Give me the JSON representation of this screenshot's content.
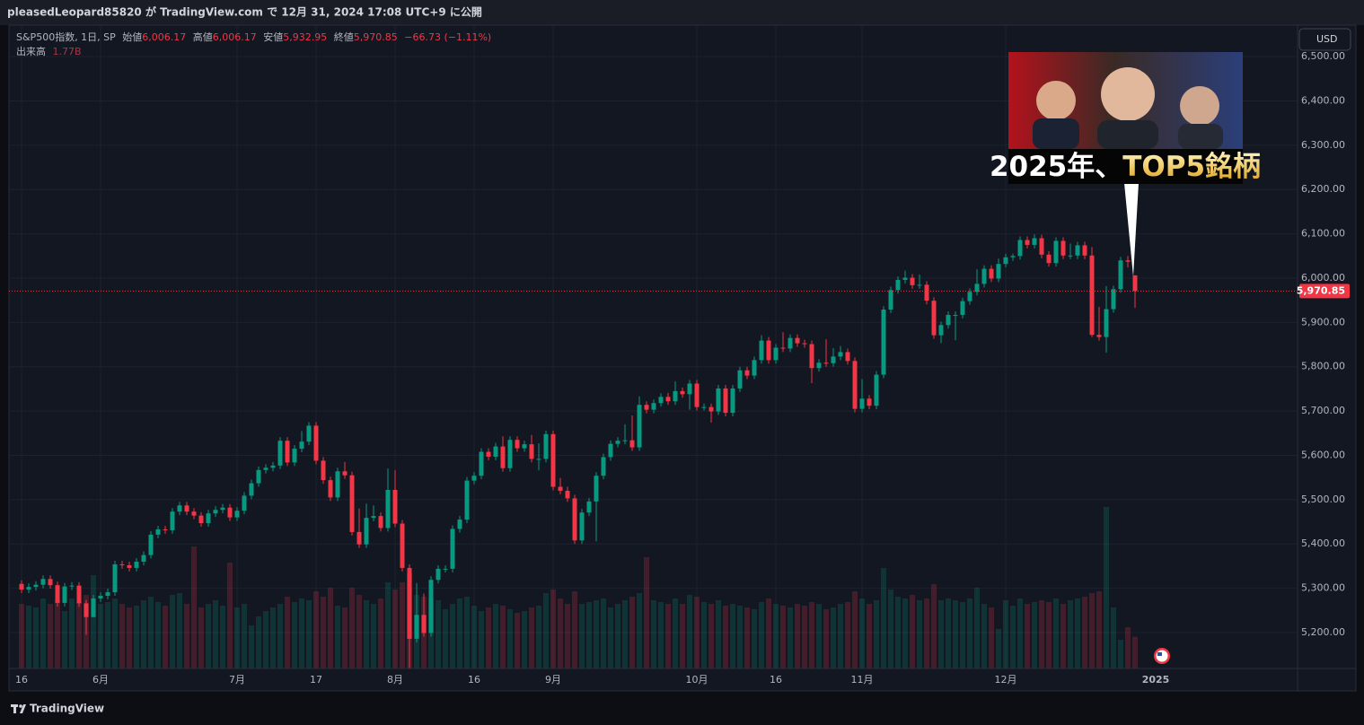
{
  "header": {
    "publisher": "pleasedLeopard85820 が TradingView.com で 12月 31, 2024 17:08 UTC+9 に公開"
  },
  "legend": {
    "symbol": "S&P500指数, 1日, SP",
    "open_label": "始値",
    "open": "6,006.17",
    "high_label": "高値",
    "high": "6,006.17",
    "low_label": "安値",
    "low": "5,932.95",
    "close_label": "終値",
    "close": "5,970.85",
    "change": "−66.73 (−1.11%)",
    "volume_label": "出来高",
    "volume": "1.77B"
  },
  "currency_button": "USD",
  "thumbnail": {
    "text": [
      "2025年、",
      "TOP5銘柄"
    ]
  },
  "footer": {
    "brand": "TradingView"
  },
  "chart_data": {
    "type": "candlestick",
    "up_color": "#089981",
    "down_color": "#f23645",
    "ylim": [
      5119,
      6571
    ],
    "yticks": [
      {
        "value": 5200,
        "label": "5,200.00"
      },
      {
        "value": 5300,
        "label": "5,300.00"
      },
      {
        "value": 5400,
        "label": "5,400.00"
      },
      {
        "value": 5500,
        "label": "5,500.00"
      },
      {
        "value": 5600,
        "label": "5,600.00"
      },
      {
        "value": 5700,
        "label": "5,700.00"
      },
      {
        "value": 5800,
        "label": "5,800.00"
      },
      {
        "value": 5900,
        "label": "5,900.00"
      },
      {
        "value": 6000,
        "label": "6,000.00"
      },
      {
        "value": 6100,
        "label": "6,100.00"
      },
      {
        "value": 6200,
        "label": "6,200.00"
      },
      {
        "value": 6300,
        "label": "6,300.00"
      },
      {
        "value": 6400,
        "label": "6,400.00"
      },
      {
        "value": 6500,
        "label": "6,500.00"
      }
    ],
    "last_price": {
      "value": 5970.85,
      "label": "5,970.85"
    },
    "next_label": "2025",
    "categories": [
      "16",
      null,
      null,
      null,
      null,
      null,
      null,
      null,
      null,
      null,
      null,
      "6月",
      null,
      null,
      null,
      null,
      null,
      null,
      null,
      null,
      null,
      null,
      null,
      null,
      null,
      null,
      null,
      null,
      null,
      null,
      "7月",
      null,
      null,
      null,
      null,
      null,
      null,
      null,
      null,
      null,
      null,
      "17",
      null,
      null,
      null,
      null,
      null,
      null,
      null,
      null,
      null,
      null,
      "8月",
      null,
      null,
      null,
      null,
      null,
      null,
      null,
      null,
      null,
      null,
      "16",
      null,
      null,
      null,
      null,
      null,
      null,
      null,
      null,
      null,
      null,
      "9月",
      null,
      null,
      null,
      null,
      null,
      null,
      null,
      null,
      null,
      null,
      null,
      null,
      null,
      null,
      null,
      null,
      null,
      null,
      null,
      "10月",
      null,
      null,
      null,
      null,
      null,
      null,
      null,
      null,
      null,
      null,
      "16",
      null,
      null,
      null,
      null,
      null,
      null,
      null,
      null,
      null,
      null,
      null,
      "11月",
      null,
      null,
      null,
      null,
      null,
      null,
      null,
      null,
      null,
      null,
      null,
      null,
      null,
      null,
      null,
      null,
      null,
      null,
      null,
      "12月",
      null,
      null,
      null,
      null,
      null,
      null,
      null,
      null,
      null,
      null,
      null,
      null,
      null,
      null,
      null,
      null,
      null,
      null
    ],
    "open": [
      5310,
      5297,
      5303,
      5308,
      5321,
      5307,
      5267,
      5304,
      5306,
      5266,
      5235,
      5277,
      5283,
      5291,
      5354,
      5352,
      5346,
      5360,
      5375,
      5421,
      5433,
      5431,
      5473,
      5487,
      5473,
      5464,
      5447,
      5469,
      5477,
      5482,
      5460,
      5475,
      5509,
      5537,
      5567,
      5572,
      5577,
      5633,
      5584,
      5615,
      5631,
      5667,
      5588,
      5544,
      5505,
      5564,
      5555,
      5427,
      5399,
      5459,
      5463,
      5436,
      5522,
      5446,
      5346,
      5186,
      5240,
      5199,
      5319,
      5344,
      5344,
      5434,
      5455,
      5543,
      5554,
      5608,
      5597,
      5620,
      5571,
      5635,
      5616,
      5625,
      5592,
      5592,
      5648,
      5529,
      5520,
      5503,
      5408,
      5471,
      5496,
      5554,
      5596,
      5626,
      5633,
      5634,
      5618,
      5714,
      5703,
      5718,
      5732,
      5722,
      5745,
      5738,
      5762,
      5709,
      5709,
      5699,
      5751,
      5696,
      5751,
      5792,
      5780,
      5815,
      5859,
      5815,
      5843,
      5841,
      5865,
      5853,
      5851,
      5797,
      5809,
      5808,
      5823,
      5833,
      5813,
      5705,
      5728,
      5712,
      5782,
      5929,
      5973,
      5996,
      6001,
      5984,
      5985,
      5949,
      5871,
      5894,
      5917,
      5917,
      5948,
      5969,
      5987,
      6021,
      5999,
      6032,
      6047,
      6050,
      6086,
      6075,
      6090,
      6053,
      6034,
      6084,
      6051,
      6051,
      6074,
      6051,
      5872,
      5867,
      5930,
      5975,
      6040,
      6006.17
    ],
    "high": [
      5318,
      5311,
      5316,
      5329,
      5329,
      5315,
      5312,
      5314,
      5314,
      5274,
      5285,
      5291,
      5299,
      5362,
      5362,
      5360,
      5368,
      5383,
      5429,
      5441,
      5441,
      5481,
      5495,
      5495,
      5481,
      5472,
      5477,
      5485,
      5490,
      5490,
      5483,
      5517,
      5545,
      5575,
      5580,
      5585,
      5641,
      5641,
      5623,
      5655,
      5675,
      5675,
      5596,
      5552,
      5572,
      5585,
      5563,
      5480,
      5491,
      5487,
      5471,
      5570,
      5566,
      5454,
      5354,
      5312,
      5288,
      5327,
      5352,
      5352,
      5442,
      5463,
      5551,
      5562,
      5616,
      5616,
      5628,
      5643,
      5643,
      5643,
      5633,
      5646,
      5627,
      5656,
      5656,
      5549,
      5529,
      5511,
      5479,
      5504,
      5562,
      5604,
      5634,
      5641,
      5670,
      5690,
      5733,
      5722,
      5726,
      5740,
      5741,
      5767,
      5753,
      5770,
      5770,
      5717,
      5717,
      5759,
      5759,
      5759,
      5800,
      5800,
      5823,
      5871,
      5867,
      5851,
      5878,
      5873,
      5873,
      5861,
      5859,
      5817,
      5862,
      5842,
      5847,
      5841,
      5821,
      5772,
      5736,
      5790,
      5937,
      5981,
      6004,
      6017,
      6009,
      6008,
      5993,
      5957,
      5902,
      5925,
      5925,
      5956,
      5977,
      6020,
      6029,
      6029,
      6044,
      6055,
      6055,
      6094,
      6094,
      6099,
      6098,
      6061,
      6092,
      6092,
      6078,
      6082,
      6082,
      6070,
      5935,
      5982,
      5983,
      6048,
      6050,
      6006.17
    ],
    "low": [
      5289,
      5289,
      5295,
      5300,
      5299,
      5259,
      5259,
      5296,
      5258,
      5195,
      5234,
      5269,
      5275,
      5283,
      5344,
      5338,
      5338,
      5352,
      5367,
      5413,
      5423,
      5423,
      5465,
      5465,
      5456,
      5439,
      5439,
      5461,
      5469,
      5452,
      5452,
      5467,
      5501,
      5529,
      5559,
      5564,
      5569,
      5576,
      5576,
      5607,
      5623,
      5580,
      5536,
      5497,
      5497,
      5547,
      5419,
      5391,
      5391,
      5451,
      5428,
      5428,
      5438,
      5338,
      5120,
      5178,
      5191,
      5191,
      5311,
      5336,
      5336,
      5426,
      5447,
      5535,
      5546,
      5589,
      5589,
      5563,
      5563,
      5608,
      5608,
      5584,
      5566,
      5584,
      5521,
      5512,
      5495,
      5400,
      5400,
      5463,
      5406,
      5546,
      5588,
      5618,
      5625,
      5610,
      5610,
      5695,
      5695,
      5710,
      5714,
      5714,
      5730,
      5703,
      5701,
      5701,
      5674,
      5691,
      5688,
      5688,
      5743,
      5772,
      5772,
      5807,
      5807,
      5807,
      5833,
      5833,
      5845,
      5843,
      5763,
      5789,
      5800,
      5800,
      5815,
      5805,
      5697,
      5697,
      5704,
      5704,
      5774,
      5921,
      5965,
      5988,
      5976,
      5976,
      5941,
      5863,
      5853,
      5886,
      5860,
      5909,
      5940,
      5961,
      5979,
      5991,
      5991,
      6024,
      6039,
      6042,
      6067,
      6067,
      6045,
      6026,
      6026,
      6043,
      6043,
      6043,
      6043,
      5867,
      5859,
      5832,
      5922,
      5967,
      6024,
      5932.95
    ],
    "close": [
      5297,
      5303,
      5308,
      5321,
      5307,
      5267,
      5304,
      5306,
      5266,
      5235,
      5277,
      5283,
      5291,
      5354,
      5352,
      5346,
      5360,
      5375,
      5421,
      5433,
      5431,
      5473,
      5487,
      5473,
      5464,
      5447,
      5469,
      5477,
      5482,
      5460,
      5475,
      5509,
      5537,
      5567,
      5572,
      5577,
      5633,
      5584,
      5615,
      5631,
      5667,
      5588,
      5544,
      5505,
      5564,
      5555,
      5427,
      5399,
      5459,
      5463,
      5436,
      5522,
      5446,
      5346,
      5186,
      5240,
      5199,
      5319,
      5344,
      5344,
      5434,
      5455,
      5543,
      5554,
      5608,
      5597,
      5620,
      5571,
      5635,
      5616,
      5625,
      5592,
      5592,
      5648,
      5529,
      5520,
      5503,
      5408,
      5471,
      5496,
      5554,
      5596,
      5626,
      5633,
      5634,
      5618,
      5714,
      5703,
      5718,
      5732,
      5722,
      5745,
      5738,
      5762,
      5709,
      5709,
      5699,
      5751,
      5696,
      5751,
      5792,
      5780,
      5815,
      5859,
      5815,
      5843,
      5841,
      5865,
      5853,
      5851,
      5797,
      5809,
      5808,
      5823,
      5833,
      5813,
      5705,
      5728,
      5712,
      5782,
      5929,
      5973,
      5996,
      6001,
      5984,
      5985,
      5949,
      5871,
      5894,
      5917,
      5917,
      5948,
      5969,
      5987,
      6021,
      5999,
      6032,
      6047,
      6050,
      6086,
      6075,
      6090,
      6053,
      6034,
      6084,
      6051,
      6051,
      6074,
      6051,
      5872,
      5867,
      5930,
      5975,
      6040,
      6037,
      5970.85
    ],
    "volume": [
      3.6,
      3.5,
      3.4,
      3.9,
      3.6,
      3.8,
      3.2,
      3.9,
      3.7,
      4.1,
      5.2,
      3.6,
      3.7,
      3.9,
      3.6,
      3.4,
      3.5,
      3.8,
      4.0,
      3.7,
      3.5,
      4.1,
      4.2,
      3.6,
      6.8,
      3.4,
      3.6,
      3.8,
      3.5,
      5.9,
      3.4,
      3.6,
      2.4,
      2.9,
      3.2,
      3.4,
      3.6,
      4.0,
      3.7,
      3.9,
      3.8,
      4.3,
      4.0,
      4.5,
      3.5,
      3.4,
      4.5,
      4.1,
      3.8,
      3.6,
      3.9,
      4.8,
      4.4,
      4.8,
      5.3,
      4.1,
      4.0,
      3.9,
      3.8,
      3.3,
      3.6,
      3.9,
      4.0,
      3.5,
      3.2,
      3.4,
      3.6,
      3.5,
      3.3,
      3.1,
      3.2,
      3.4,
      3.5,
      4.2,
      4.4,
      3.9,
      3.6,
      4.3,
      3.6,
      3.7,
      3.8,
      3.9,
      3.4,
      3.6,
      3.8,
      4.0,
      4.2,
      6.2,
      3.8,
      3.7,
      3.6,
      3.9,
      3.6,
      4.1,
      4.0,
      3.7,
      3.6,
      3.8,
      3.5,
      3.6,
      3.5,
      3.4,
      3.3,
      3.7,
      3.9,
      3.6,
      3.5,
      3.4,
      3.6,
      3.5,
      3.7,
      3.6,
      3.3,
      3.4,
      3.6,
      3.7,
      4.3,
      3.9,
      3.6,
      3.8,
      5.6,
      4.4,
      4.0,
      3.9,
      4.1,
      3.8,
      3.9,
      4.7,
      3.8,
      3.9,
      3.8,
      3.7,
      3.9,
      4.5,
      3.6,
      3.4,
      2.2,
      3.8,
      3.5,
      3.9,
      3.6,
      3.7,
      3.8,
      3.7,
      3.9,
      3.6,
      3.8,
      3.9,
      4.0,
      4.2,
      4.3,
      9.0,
      3.4,
      1.6,
      2.3,
      1.77
    ]
  }
}
